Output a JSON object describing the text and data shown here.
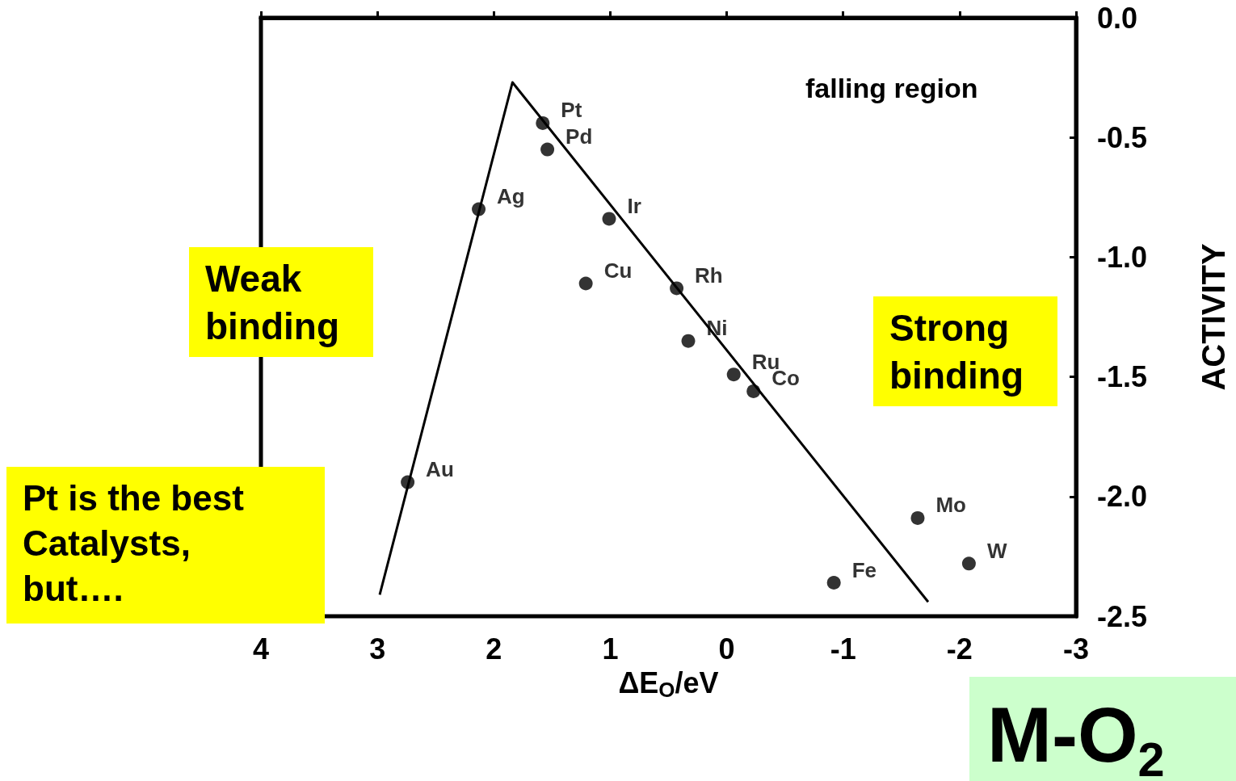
{
  "chart_data": {
    "type": "scatter",
    "xlabel": "ΔE$_{O}$/eV",
    "ylabel": "ACTIVITY",
    "series": [
      {
        "color": "#000000",
        "x": [
          1.58,
          1.54,
          2.13,
          1.01,
          1.21,
          0.43,
          0.33,
          -0.06,
          -0.23,
          2.74,
          -1.64,
          -2.08,
          -0.92
        ],
        "values": [
          -0.44,
          -0.55,
          -0.8,
          -0.84,
          -1.11,
          -1.13,
          -1.35,
          -1.49,
          -1.56,
          -1.94,
          -2.09,
          -2.28,
          -2.36
        ],
        "value_labels": [
          "Pt",
          "Pd",
          "Ag",
          "Ir",
          "Cu",
          "Rh",
          "Ni",
          "Ru",
          "Co",
          "Au",
          "Mo",
          "W",
          "Fe"
        ]
      },
      {
        "type": "line",
        "color": "#000000",
        "marker": "none",
        "x": [
          2.98,
          1.84,
          -1.73
        ],
        "values": [
          -2.41,
          -0.27,
          -2.44
        ]
      }
    ],
    "xlim": [
      4,
      -3
    ],
    "xticks": [
      4,
      3,
      2,
      1,
      0,
      -1,
      -2,
      -3
    ],
    "ylim": [
      -2.5,
      0
    ],
    "yticks": [
      {
        "value": 0,
        "label": "0.0"
      },
      {
        "value": -0.5,
        "label": "-0.5"
      },
      {
        "value": -1,
        "label": "-1.0"
      },
      {
        "value": -1.5,
        "label": "-1.5"
      },
      {
        "value": -2,
        "label": "-2.0"
      },
      {
        "value": -2.5,
        "label": "-2.5"
      }
    ],
    "grid": false,
    "marker": "circle",
    "line_style": "solid",
    "annotations": [
      "falling region",
      "Weak binding",
      "Strong binding",
      "Pt is the best Catalysts, but….",
      "M-O$_{2}$"
    ]
  }
}
